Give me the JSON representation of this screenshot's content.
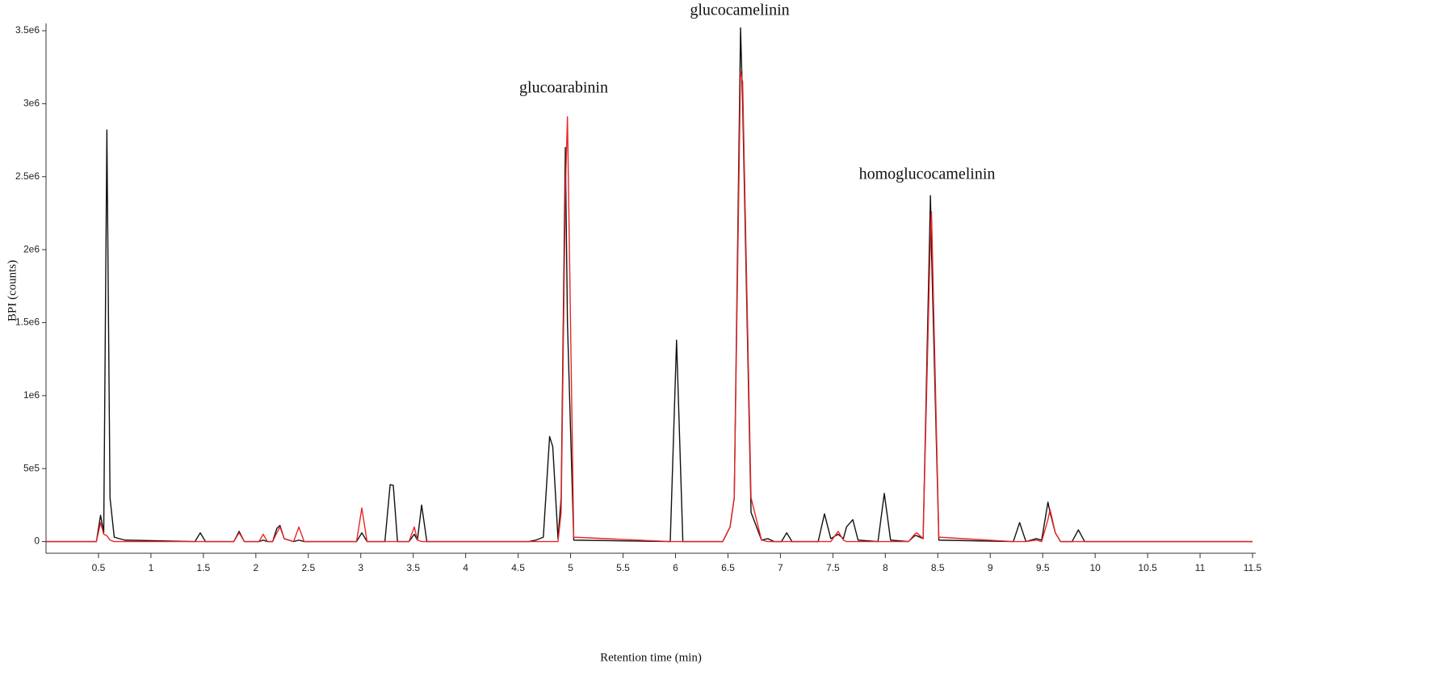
{
  "chart_data": {
    "type": "line",
    "x_label": "Retention time (min)",
    "y_label": "BPI (counts)",
    "annotations": [
      "glucoarabinin",
      "glucocamelinin",
      "homoglucocamelinin"
    ],
    "xlim": [
      0,
      11.5
    ],
    "ylim": [
      -80000,
      3550000
    ],
    "xticks": [
      0.5,
      1,
      1.5,
      2,
      2.5,
      3,
      3.5,
      4,
      4.5,
      5,
      5.5,
      6,
      6.5,
      7,
      7.5,
      8,
      8.5,
      9,
      9.5,
      10,
      10.5,
      11,
      11.5
    ],
    "yticks": [
      0,
      {
        "value": 500000,
        "label": "5e5"
      },
      {
        "value": 1000000,
        "label": "1e6"
      },
      {
        "value": 1500000,
        "label": "1.5e6"
      },
      {
        "value": 2000000,
        "label": "2e6"
      },
      {
        "value": 2500000,
        "label": "2.5e6"
      },
      {
        "value": 3000000,
        "label": "3e6"
      },
      {
        "value": 3500000,
        "label": "3.5e6"
      }
    ],
    "x": [
      0,
      0.48,
      0.52,
      0.55,
      0.58,
      0.61,
      0.65,
      0.75,
      1.42,
      1.47,
      1.52,
      1.79,
      1.84,
      1.89,
      2.03,
      2.07,
      2.11,
      2.16,
      2.2,
      2.23,
      2.27,
      2.36,
      2.41,
      2.46,
      2.96,
      3.01,
      3.06,
      3.23,
      3.28,
      3.31,
      3.35,
      3.46,
      3.51,
      3.54,
      3.58,
      3.63,
      4.6,
      4.67,
      4.74,
      4.8,
      4.83,
      4.88,
      4.91,
      4.95,
      4.97,
      5.03,
      5.95,
      6.01,
      6.07,
      6.45,
      6.52,
      6.56,
      6.62,
      6.64,
      6.72,
      6.82,
      6.88,
      6.94,
      7.01,
      7.06,
      7.11,
      7.36,
      7.42,
      7.48,
      7.55,
      7.6,
      7.63,
      7.69,
      7.74,
      7.93,
      7.99,
      8.05,
      8.22,
      8.28,
      8.3,
      8.36,
      8.43,
      8.44,
      8.51,
      9.22,
      9.28,
      9.34,
      9.44,
      9.49,
      9.55,
      9.57,
      9.62,
      9.67,
      9.78,
      9.84,
      9.9,
      11.5
    ],
    "series": [
      {
        "color": "#111111",
        "values": [
          0,
          0,
          180000,
          60000,
          2820000,
          300000,
          30000,
          10000,
          0,
          60000,
          0,
          0,
          70000,
          0,
          0,
          10000,
          0,
          0,
          90000,
          110000,
          20000,
          0,
          10000,
          0,
          0,
          60000,
          0,
          0,
          390000,
          385000,
          0,
          0,
          50000,
          10000,
          250000,
          0,
          0,
          10000,
          30000,
          720000,
          650000,
          20000,
          300000,
          2700000,
          1500000,
          10000,
          0,
          1380000,
          0,
          0,
          100000,
          300000,
          3520000,
          3000000,
          200000,
          10000,
          20000,
          0,
          0,
          60000,
          0,
          0,
          190000,
          20000,
          50000,
          20000,
          100000,
          150000,
          10000,
          0,
          330000,
          10000,
          0,
          40000,
          40000,
          20000,
          2370000,
          2000000,
          10000,
          0,
          130000,
          0,
          20000,
          10000,
          270000,
          200000,
          60000,
          0,
          0,
          80000,
          0,
          0
        ]
      },
      {
        "color": "#e8262a",
        "values": [
          0,
          0,
          130000,
          50000,
          40000,
          10000,
          0,
          0,
          0,
          0,
          0,
          0,
          60000,
          0,
          0,
          50000,
          0,
          0,
          60000,
          100000,
          20000,
          0,
          100000,
          0,
          0,
          230000,
          0,
          0,
          0,
          0,
          0,
          0,
          100000,
          10000,
          0,
          0,
          0,
          0,
          0,
          0,
          0,
          0,
          200000,
          2400000,
          2910000,
          30000,
          0,
          0,
          0,
          0,
          100000,
          300000,
          3220000,
          3150000,
          300000,
          10000,
          0,
          0,
          0,
          0,
          0,
          0,
          0,
          0,
          70000,
          10000,
          0,
          0,
          0,
          0,
          0,
          0,
          0,
          50000,
          60000,
          20000,
          2100000,
          2260000,
          30000,
          0,
          0,
          0,
          10000,
          0,
          150000,
          220000,
          60000,
          0,
          0,
          0,
          0,
          0
        ]
      }
    ]
  }
}
